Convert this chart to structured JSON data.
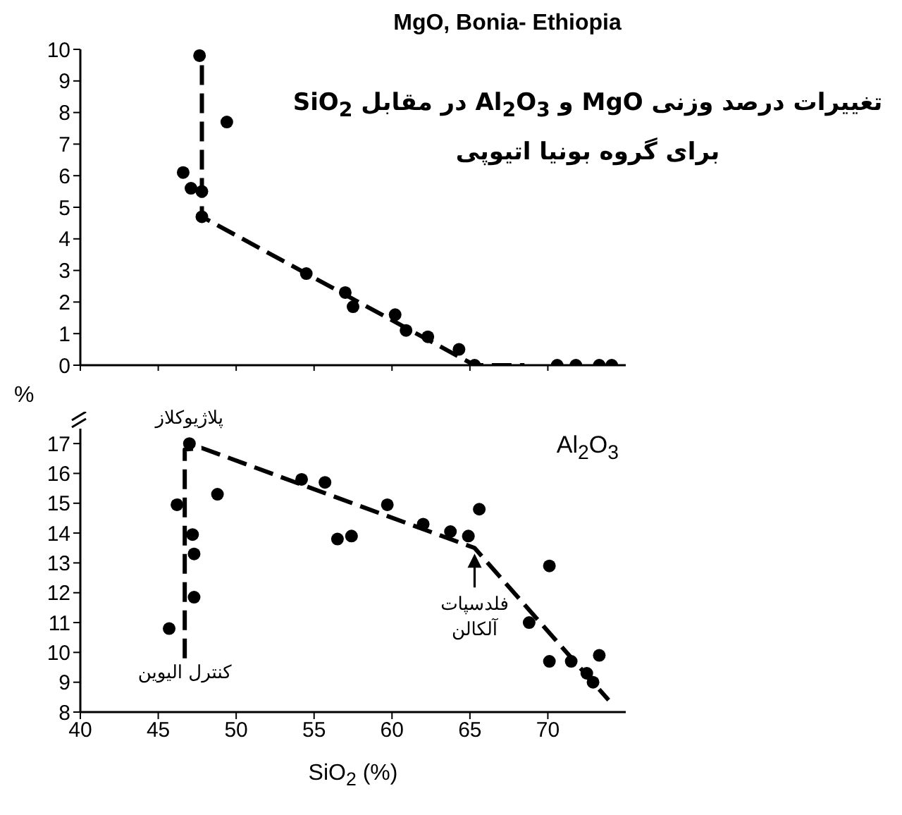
{
  "chart_data": [
    {
      "type": "scatter",
      "title": "MgO, Bonia- Ethiopia",
      "subtitle": "تغییرات درصد وزنی MgO و Al$_{2}$O$_{3}$ در مقابل SiO$_{2}$\nبرای گروه بونیا اتیوپی",
      "ylabel": "%",
      "xlim": [
        40,
        75
      ],
      "xticks": [
        40,
        45,
        50,
        55,
        60,
        65,
        70
      ],
      "ylim": [
        0,
        10
      ],
      "yticks": [
        0,
        1,
        2,
        3,
        4,
        5,
        6,
        7,
        8,
        9,
        10
      ],
      "tick_labels": "y",
      "series": [
        {
          "color": "#000000",
          "marker": "circle",
          "x": [
            47.65,
            49.4,
            46.6,
            47.1,
            47.8,
            47.8,
            54.5,
            57.0,
            57.5,
            60.2,
            60.9,
            62.3,
            64.3,
            65.3,
            70.6,
            71.8,
            73.3,
            74.1
          ],
          "values": [
            9.8,
            7.7,
            6.1,
            5.6,
            5.5,
            4.7,
            2.9,
            2.3,
            1.85,
            1.6,
            1.1,
            0.9,
            0.5,
            0,
            0,
            0,
            0,
            0
          ]
        },
        {
          "type": "line",
          "color": "#000000",
          "marker": "none",
          "line_style": "dashed",
          "x": [
            47.8,
            47.8,
            65.3,
            68.5
          ],
          "values": [
            9.5,
            4.7,
            0,
            0
          ]
        }
      ]
    },
    {
      "type": "scatter",
      "xlabel": "SiO$_{2}$ (%)",
      "xlim": [
        40,
        75
      ],
      "xticks": [
        40,
        45,
        50,
        55,
        60,
        65,
        70
      ],
      "ylim": [
        8,
        17.5
      ],
      "yticks": [
        8,
        9,
        10,
        11,
        12,
        13,
        14,
        15,
        16,
        17
      ],
      "annotations": [
        "Al$_{2}$O$_{3}$",
        {
          "text": "پلاژیوکلاز",
          "x": 47.0,
          "y": 17.0
        },
        {
          "text": "کنترل الیوین",
          "x": 46.7,
          "y": 9.8
        },
        {
          "text": "فلدسپات\nآلکالن",
          "x": 65.3,
          "y": 13.5
        }
      ],
      "series": [
        {
          "color": "#000000",
          "marker": "circle",
          "x": [
            47.0,
            46.2,
            47.2,
            47.3,
            47.3,
            45.7,
            48.8,
            54.2,
            55.7,
            56.5,
            57.4,
            59.7,
            62.0,
            63.75,
            64.9,
            65.6,
            70.1,
            68.8,
            70.1,
            71.5,
            72.5,
            72.9,
            73.3
          ],
          "values": [
            17.0,
            14.95,
            13.95,
            13.3,
            11.85,
            10.8,
            15.3,
            15.8,
            15.7,
            13.8,
            13.9,
            14.95,
            14.3,
            14.05,
            13.9,
            14.8,
            12.9,
            11.0,
            9.7,
            9.7,
            9.3,
            9.0,
            9.9
          ]
        },
        {
          "type": "line",
          "color": "#000000",
          "marker": "none",
          "line_style": "dashed",
          "x": [
            46.7,
            46.7,
            47.8,
            65.3,
            73.9
          ],
          "values": [
            9.8,
            16.8,
            16.85,
            13.5,
            8.4
          ]
        }
      ]
    }
  ]
}
